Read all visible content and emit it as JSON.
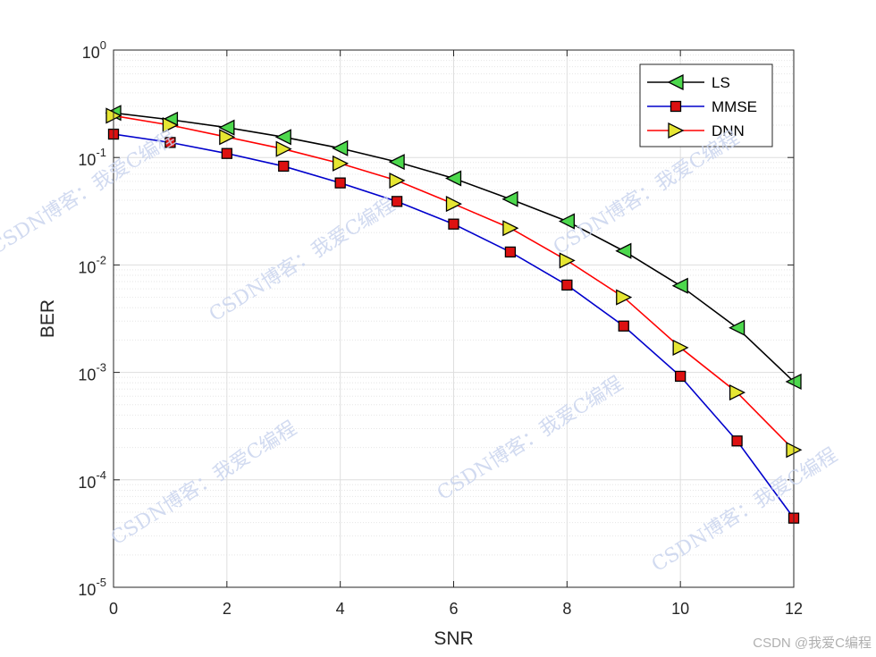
{
  "chart_data": {
    "type": "line",
    "xlabel": "SNR",
    "ylabel": "BER",
    "xlim": [
      0,
      12
    ],
    "ylim": [
      1e-05,
      1
    ],
    "y_scale": "log",
    "x_ticks": [
      "0",
      "2",
      "4",
      "6",
      "8",
      "10",
      "12"
    ],
    "y_ticks": [
      {
        "base": "10",
        "exp": "0"
      },
      {
        "base": "10",
        "exp": "-1"
      },
      {
        "base": "10",
        "exp": "-2"
      },
      {
        "base": "10",
        "exp": "-3"
      },
      {
        "base": "10",
        "exp": "-4"
      },
      {
        "base": "10",
        "exp": "-5"
      }
    ],
    "grid": true,
    "minor_grid": true,
    "legend_position": "top-right",
    "x": [
      0,
      1,
      2,
      3,
      4,
      5,
      6,
      7,
      8,
      9,
      10,
      11,
      12
    ],
    "series": [
      {
        "name": "LS",
        "color": "#000000",
        "marker": "triangle-left",
        "marker_color": "#4dd84d",
        "values": [
          0.26,
          0.225,
          0.19,
          0.155,
          0.122,
          0.091,
          0.064,
          0.041,
          0.0255,
          0.0135,
          0.0064,
          0.0026,
          0.00082
        ]
      },
      {
        "name": "MMSE",
        "color": "#0000cc",
        "marker": "square",
        "marker_color": "#dd1111",
        "values": [
          0.165,
          0.138,
          0.109,
          0.083,
          0.058,
          0.039,
          0.024,
          0.0132,
          0.0065,
          0.0027,
          0.00092,
          0.00023,
          4.4e-05
        ]
      },
      {
        "name": "DNN",
        "color": "#ff0000",
        "marker": "triangle-right",
        "marker_color": "#e6e633",
        "values": [
          0.245,
          0.2,
          0.155,
          0.12,
          0.088,
          0.061,
          0.037,
          0.022,
          0.011,
          0.005,
          0.0017,
          0.00065,
          0.00019
        ]
      }
    ]
  },
  "watermarks": {
    "text": "CSDN博客：我爱C编程",
    "credit": "CSDN @我爱C编程"
  }
}
